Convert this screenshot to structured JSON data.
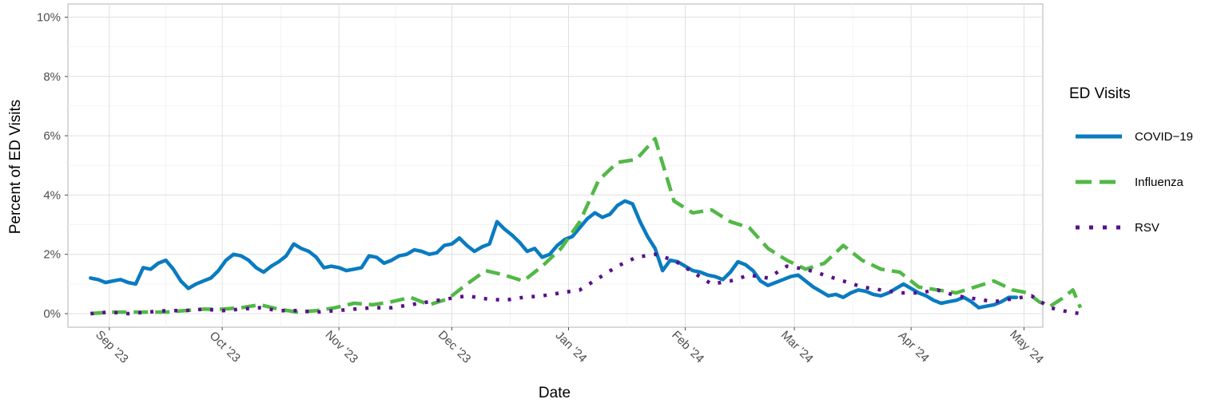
{
  "chart_data": {
    "type": "line",
    "title": "",
    "xlabel": "Date",
    "ylabel": "Percent of ED Visits",
    "x_axis_type": "date",
    "xlim": [
      "2023-08-21",
      "2024-05-06"
    ],
    "ylim": [
      0,
      10
    ],
    "x_ticks": [
      {
        "date": "2023-09-01",
        "label": "Sep '23"
      },
      {
        "date": "2023-10-01",
        "label": "Oct '23"
      },
      {
        "date": "2023-11-01",
        "label": "Nov '23"
      },
      {
        "date": "2023-12-01",
        "label": "Dec '23"
      },
      {
        "date": "2024-01-01",
        "label": "Jan '24"
      },
      {
        "date": "2024-02-01",
        "label": "Feb '24"
      },
      {
        "date": "2024-03-01",
        "label": "Mar '24"
      },
      {
        "date": "2024-04-01",
        "label": "Apr '24"
      },
      {
        "date": "2024-05-01",
        "label": "May '24"
      }
    ],
    "y_ticks": [
      {
        "value": 0,
        "label": "0%"
      },
      {
        "value": 2,
        "label": "2%"
      },
      {
        "value": 4,
        "label": "4%"
      },
      {
        "value": 6,
        "label": "6%"
      },
      {
        "value": 8,
        "label": "8%"
      },
      {
        "value": 10,
        "label": "10%"
      }
    ],
    "grid": true,
    "legend": {
      "title": "ED Visits",
      "position": "right"
    },
    "series": [
      {
        "name": "COVID−19",
        "color": "#0a7bc1",
        "line_style": "solid",
        "points": [
          [
            "2023-08-27",
            1.2
          ],
          [
            "2023-08-29",
            1.15
          ],
          [
            "2023-08-31",
            1.05
          ],
          [
            "2023-09-02",
            1.1
          ],
          [
            "2023-09-04",
            1.15
          ],
          [
            "2023-09-06",
            1.05
          ],
          [
            "2023-09-08",
            1.0
          ],
          [
            "2023-09-10",
            1.55
          ],
          [
            "2023-09-12",
            1.5
          ],
          [
            "2023-09-14",
            1.7
          ],
          [
            "2023-09-16",
            1.8
          ],
          [
            "2023-09-18",
            1.5
          ],
          [
            "2023-09-20",
            1.1
          ],
          [
            "2023-09-22",
            0.85
          ],
          [
            "2023-09-24",
            1.0
          ],
          [
            "2023-09-26",
            1.1
          ],
          [
            "2023-09-28",
            1.2
          ],
          [
            "2023-09-30",
            1.45
          ],
          [
            "2023-10-02",
            1.8
          ],
          [
            "2023-10-04",
            2.0
          ],
          [
            "2023-10-06",
            1.95
          ],
          [
            "2023-10-08",
            1.8
          ],
          [
            "2023-10-10",
            1.55
          ],
          [
            "2023-10-12",
            1.4
          ],
          [
            "2023-10-14",
            1.6
          ],
          [
            "2023-10-16",
            1.75
          ],
          [
            "2023-10-18",
            1.95
          ],
          [
            "2023-10-20",
            2.35
          ],
          [
            "2023-10-22",
            2.2
          ],
          [
            "2023-10-24",
            2.1
          ],
          [
            "2023-10-26",
            1.9
          ],
          [
            "2023-10-28",
            1.55
          ],
          [
            "2023-10-30",
            1.6
          ],
          [
            "2023-11-01",
            1.55
          ],
          [
            "2023-11-03",
            1.45
          ],
          [
            "2023-11-05",
            1.5
          ],
          [
            "2023-11-07",
            1.55
          ],
          [
            "2023-11-09",
            1.95
          ],
          [
            "2023-11-11",
            1.9
          ],
          [
            "2023-11-13",
            1.7
          ],
          [
            "2023-11-15",
            1.8
          ],
          [
            "2023-11-17",
            1.95
          ],
          [
            "2023-11-19",
            2.0
          ],
          [
            "2023-11-21",
            2.15
          ],
          [
            "2023-11-23",
            2.1
          ],
          [
            "2023-11-25",
            2.0
          ],
          [
            "2023-11-27",
            2.05
          ],
          [
            "2023-11-29",
            2.3
          ],
          [
            "2023-12-01",
            2.35
          ],
          [
            "2023-12-03",
            2.55
          ],
          [
            "2023-12-05",
            2.3
          ],
          [
            "2023-12-07",
            2.1
          ],
          [
            "2023-12-09",
            2.25
          ],
          [
            "2023-12-11",
            2.35
          ],
          [
            "2023-12-13",
            3.1
          ],
          [
            "2023-12-15",
            2.85
          ],
          [
            "2023-12-17",
            2.65
          ],
          [
            "2023-12-19",
            2.4
          ],
          [
            "2023-12-21",
            2.1
          ],
          [
            "2023-12-23",
            2.2
          ],
          [
            "2023-12-25",
            1.9
          ],
          [
            "2023-12-27",
            2.0
          ],
          [
            "2023-12-29",
            2.3
          ],
          [
            "2023-12-31",
            2.5
          ],
          [
            "2024-01-02",
            2.6
          ],
          [
            "2024-01-04",
            2.9
          ],
          [
            "2024-01-06",
            3.2
          ],
          [
            "2024-01-08",
            3.4
          ],
          [
            "2024-01-10",
            3.25
          ],
          [
            "2024-01-12",
            3.35
          ],
          [
            "2024-01-14",
            3.65
          ],
          [
            "2024-01-16",
            3.8
          ],
          [
            "2024-01-18",
            3.7
          ],
          [
            "2024-01-20",
            3.1
          ],
          [
            "2024-01-22",
            2.6
          ],
          [
            "2024-01-24",
            2.2
          ],
          [
            "2024-01-26",
            1.45
          ],
          [
            "2024-01-28",
            1.8
          ],
          [
            "2024-01-30",
            1.75
          ],
          [
            "2024-02-01",
            1.6
          ],
          [
            "2024-02-03",
            1.45
          ],
          [
            "2024-02-05",
            1.4
          ],
          [
            "2024-02-07",
            1.3
          ],
          [
            "2024-02-09",
            1.25
          ],
          [
            "2024-02-11",
            1.15
          ],
          [
            "2024-02-13",
            1.4
          ],
          [
            "2024-02-15",
            1.75
          ],
          [
            "2024-02-17",
            1.65
          ],
          [
            "2024-02-19",
            1.45
          ],
          [
            "2024-02-21",
            1.1
          ],
          [
            "2024-02-23",
            0.95
          ],
          [
            "2024-02-25",
            1.05
          ],
          [
            "2024-02-27",
            1.15
          ],
          [
            "2024-02-29",
            1.25
          ],
          [
            "2024-03-02",
            1.3
          ],
          [
            "2024-03-04",
            1.1
          ],
          [
            "2024-03-06",
            0.9
          ],
          [
            "2024-03-08",
            0.75
          ],
          [
            "2024-03-10",
            0.6
          ],
          [
            "2024-03-12",
            0.65
          ],
          [
            "2024-03-14",
            0.55
          ],
          [
            "2024-03-16",
            0.7
          ],
          [
            "2024-03-18",
            0.8
          ],
          [
            "2024-03-20",
            0.75
          ],
          [
            "2024-03-22",
            0.65
          ],
          [
            "2024-03-24",
            0.6
          ],
          [
            "2024-03-26",
            0.7
          ],
          [
            "2024-03-28",
            0.85
          ],
          [
            "2024-03-30",
            1.0
          ],
          [
            "2024-04-01",
            0.85
          ],
          [
            "2024-04-03",
            0.7
          ],
          [
            "2024-04-05",
            0.6
          ],
          [
            "2024-04-07",
            0.45
          ],
          [
            "2024-04-09",
            0.35
          ],
          [
            "2024-04-11",
            0.4
          ],
          [
            "2024-04-13",
            0.45
          ],
          [
            "2024-04-15",
            0.55
          ],
          [
            "2024-04-17",
            0.4
          ],
          [
            "2024-04-19",
            0.2
          ],
          [
            "2024-04-21",
            0.25
          ],
          [
            "2024-04-23",
            0.3
          ],
          [
            "2024-04-25",
            0.4
          ],
          [
            "2024-04-27",
            0.55
          ],
          [
            "2024-04-29",
            0.55
          ]
        ]
      },
      {
        "name": "Influenza",
        "color": "#52b847",
        "line_style": "dashed",
        "points": [
          [
            "2023-08-27",
            0.0
          ],
          [
            "2023-09-01",
            0.05
          ],
          [
            "2023-09-06",
            0.05
          ],
          [
            "2023-09-11",
            0.05
          ],
          [
            "2023-09-16",
            0.05
          ],
          [
            "2023-09-21",
            0.1
          ],
          [
            "2023-09-26",
            0.15
          ],
          [
            "2023-10-01",
            0.15
          ],
          [
            "2023-10-06",
            0.2
          ],
          [
            "2023-10-11",
            0.3
          ],
          [
            "2023-10-16",
            0.15
          ],
          [
            "2023-10-21",
            0.05
          ],
          [
            "2023-10-26",
            0.1
          ],
          [
            "2023-10-31",
            0.2
          ],
          [
            "2023-11-05",
            0.35
          ],
          [
            "2023-11-10",
            0.3
          ],
          [
            "2023-11-15",
            0.4
          ],
          [
            "2023-11-20",
            0.55
          ],
          [
            "2023-11-25",
            0.3
          ],
          [
            "2023-11-30",
            0.5
          ],
          [
            "2023-12-05",
            1.0
          ],
          [
            "2023-12-10",
            1.45
          ],
          [
            "2023-12-15",
            1.3
          ],
          [
            "2023-12-20",
            1.1
          ],
          [
            "2023-12-25",
            1.6
          ],
          [
            "2023-12-30",
            2.2
          ],
          [
            "2024-01-04",
            3.1
          ],
          [
            "2024-01-09",
            4.5
          ],
          [
            "2024-01-14",
            5.1
          ],
          [
            "2024-01-19",
            5.2
          ],
          [
            "2024-01-24",
            5.9
          ],
          [
            "2024-01-29",
            3.8
          ],
          [
            "2024-02-03",
            3.4
          ],
          [
            "2024-02-08",
            3.5
          ],
          [
            "2024-02-13",
            3.1
          ],
          [
            "2024-02-18",
            2.9
          ],
          [
            "2024-02-23",
            2.2
          ],
          [
            "2024-02-28",
            1.8
          ],
          [
            "2024-03-04",
            1.5
          ],
          [
            "2024-03-09",
            1.7
          ],
          [
            "2024-03-14",
            2.3
          ],
          [
            "2024-03-19",
            1.8
          ],
          [
            "2024-03-24",
            1.5
          ],
          [
            "2024-03-29",
            1.4
          ],
          [
            "2024-04-03",
            0.9
          ],
          [
            "2024-04-08",
            0.8
          ],
          [
            "2024-04-13",
            0.7
          ],
          [
            "2024-04-18",
            0.9
          ],
          [
            "2024-04-23",
            1.1
          ],
          [
            "2024-04-28",
            0.8
          ],
          [
            "2024-05-02",
            0.7
          ],
          [
            "2024-05-05",
            0.4
          ],
          [
            "2024-05-08",
            0.25
          ],
          [
            "2024-05-11",
            0.5
          ],
          [
            "2024-05-14",
            0.8
          ],
          [
            "2024-05-16",
            0.2
          ]
        ]
      },
      {
        "name": "RSV",
        "color": "#5a0f8c",
        "line_style": "dotted",
        "points": [
          [
            "2023-08-27",
            0.0
          ],
          [
            "2023-09-01",
            0.05
          ],
          [
            "2023-09-06",
            0.0
          ],
          [
            "2023-09-11",
            0.05
          ],
          [
            "2023-09-16",
            0.1
          ],
          [
            "2023-09-21",
            0.1
          ],
          [
            "2023-09-26",
            0.15
          ],
          [
            "2023-10-01",
            0.1
          ],
          [
            "2023-10-06",
            0.15
          ],
          [
            "2023-10-11",
            0.2
          ],
          [
            "2023-10-16",
            0.1
          ],
          [
            "2023-10-21",
            0.1
          ],
          [
            "2023-10-26",
            0.05
          ],
          [
            "2023-10-31",
            0.1
          ],
          [
            "2023-11-05",
            0.15
          ],
          [
            "2023-11-10",
            0.2
          ],
          [
            "2023-11-15",
            0.2
          ],
          [
            "2023-11-20",
            0.3
          ],
          [
            "2023-11-25",
            0.4
          ],
          [
            "2023-11-30",
            0.5
          ],
          [
            "2023-12-05",
            0.6
          ],
          [
            "2023-12-10",
            0.5
          ],
          [
            "2023-12-15",
            0.45
          ],
          [
            "2023-12-20",
            0.55
          ],
          [
            "2023-12-25",
            0.6
          ],
          [
            "2023-12-30",
            0.7
          ],
          [
            "2024-01-04",
            0.8
          ],
          [
            "2024-01-09",
            1.2
          ],
          [
            "2024-01-14",
            1.6
          ],
          [
            "2024-01-19",
            1.9
          ],
          [
            "2024-01-24",
            2.0
          ],
          [
            "2024-01-29",
            1.8
          ],
          [
            "2024-02-03",
            1.4
          ],
          [
            "2024-02-08",
            1.0
          ],
          [
            "2024-02-13",
            1.1
          ],
          [
            "2024-02-18",
            1.3
          ],
          [
            "2024-02-23",
            1.2
          ],
          [
            "2024-02-28",
            1.6
          ],
          [
            "2024-03-04",
            1.5
          ],
          [
            "2024-03-09",
            1.3
          ],
          [
            "2024-03-14",
            1.1
          ],
          [
            "2024-03-19",
            0.9
          ],
          [
            "2024-03-24",
            0.8
          ],
          [
            "2024-03-29",
            0.7
          ],
          [
            "2024-04-03",
            0.7
          ],
          [
            "2024-04-08",
            0.8
          ],
          [
            "2024-04-13",
            0.6
          ],
          [
            "2024-04-18",
            0.5
          ],
          [
            "2024-04-23",
            0.4
          ],
          [
            "2024-04-28",
            0.5
          ],
          [
            "2024-05-03",
            0.6
          ],
          [
            "2024-05-08",
            0.2
          ],
          [
            "2024-05-13",
            0.05
          ],
          [
            "2024-05-16",
            0.0
          ]
        ]
      }
    ]
  }
}
